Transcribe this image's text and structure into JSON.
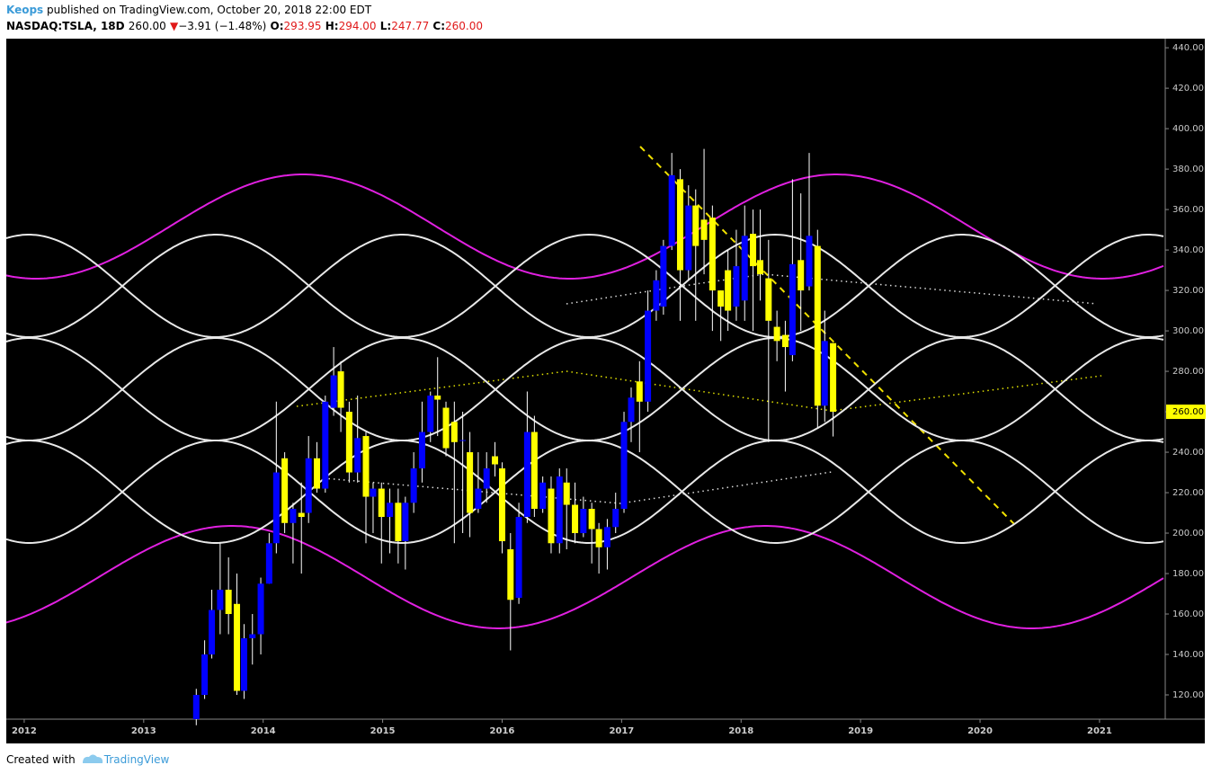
{
  "header": {
    "author": "Keops",
    "published": " published on TradingView.com, October 20, 2018 22:00 EDT",
    "symbol": "NASDAQ:TSLA, 18D",
    "last": "260.00",
    "arrow": "▼",
    "change": "−3.91 (−1.48%)",
    "ohlc": [
      {
        "label": "O:",
        "value": "293.95"
      },
      {
        "label": "H:",
        "value": "294.00"
      },
      {
        "label": "L:",
        "value": "247.77"
      },
      {
        "label": "C:",
        "value": "260.00"
      }
    ]
  },
  "footer": {
    "text": "Created with",
    "brand": "TradingView"
  },
  "chart_data": {
    "type": "candlestick",
    "x": [
      2013.44,
      2013.51,
      2013.57,
      2013.64,
      2013.71,
      2013.78,
      2013.84,
      2013.91,
      2013.98,
      2014.05,
      2014.11,
      2014.18,
      2014.25,
      2014.32,
      2014.38,
      2014.45,
      2014.52,
      2014.59,
      2014.65,
      2014.72,
      2014.79,
      2014.86,
      2014.92,
      2014.99,
      2015.06,
      2015.13,
      2015.19,
      2015.26,
      2015.33,
      2015.4,
      2015.46,
      2015.53,
      2015.6,
      2015.67,
      2015.73,
      2015.8,
      2015.87,
      2015.94,
      2016.0,
      2016.07,
      2016.14,
      2016.21,
      2016.27,
      2016.34,
      2016.41,
      2016.48,
      2016.54,
      2016.61,
      2016.68,
      2016.75,
      2016.81,
      2016.88,
      2016.95,
      2017.02,
      2017.08,
      2017.15,
      2017.22,
      2017.29,
      2017.35,
      2017.42,
      2017.49,
      2017.56,
      2017.62,
      2017.69,
      2017.76,
      2017.83,
      2017.89,
      2017.96,
      2018.03,
      2018.1,
      2018.16,
      2018.23,
      2018.3,
      2018.37,
      2018.43,
      2018.5,
      2018.57,
      2018.64,
      2018.7,
      2018.77
    ],
    "open": [
      108,
      120,
      140,
      162,
      172,
      165,
      122,
      148,
      150,
      175,
      195,
      237,
      205,
      210,
      210,
      237,
      222,
      262,
      280,
      260,
      230,
      248,
      218,
      222,
      208,
      215,
      196,
      215,
      232,
      250,
      268,
      262,
      255,
      246,
      240,
      212,
      222,
      238,
      232,
      192,
      168,
      208,
      250,
      212,
      222,
      195,
      225,
      214,
      200,
      212,
      202,
      193,
      203,
      212,
      255,
      275,
      265,
      310,
      312,
      342,
      375,
      330,
      362,
      355,
      356,
      320,
      330,
      312,
      315,
      348,
      335,
      326,
      302,
      298,
      288,
      335,
      322,
      342,
      263,
      293.95
    ],
    "high": [
      123,
      147,
      172,
      195,
      188,
      180,
      155,
      160,
      178,
      200,
      265,
      240,
      215,
      225,
      248,
      245,
      268,
      292,
      285,
      265,
      268,
      250,
      225,
      225,
      222,
      222,
      218,
      240,
      265,
      270,
      287,
      265,
      265,
      260,
      250,
      240,
      240,
      245,
      235,
      200,
      215,
      270,
      258,
      228,
      228,
      232,
      232,
      225,
      218,
      215,
      205,
      207,
      220,
      260,
      272,
      285,
      320,
      330,
      345,
      388,
      380,
      372,
      370,
      390,
      362,
      320,
      340,
      350,
      362,
      360,
      360,
      345,
      310,
      305,
      375,
      368,
      388,
      350,
      310,
      294.0
    ],
    "low": [
      105,
      118,
      138,
      150,
      150,
      120,
      118,
      135,
      140,
      175,
      190,
      200,
      185,
      180,
      205,
      220,
      220,
      258,
      250,
      225,
      225,
      195,
      200,
      185,
      190,
      185,
      182,
      210,
      225,
      245,
      248,
      238,
      195,
      200,
      198,
      210,
      215,
      228,
      190,
      142,
      165,
      205,
      208,
      210,
      190,
      190,
      192,
      195,
      198,
      185,
      180,
      182,
      200,
      210,
      245,
      240,
      260,
      305,
      308,
      340,
      305,
      325,
      305,
      328,
      300,
      295,
      300,
      305,
      305,
      300,
      315,
      245,
      285,
      270,
      285,
      300,
      320,
      252,
      255,
      247.77
    ],
    "close": [
      120,
      140,
      162,
      172,
      160,
      122,
      148,
      150,
      175,
      195,
      230,
      205,
      212,
      208,
      237,
      222,
      265,
      278,
      262,
      230,
      247,
      218,
      222,
      208,
      215,
      196,
      215,
      232,
      250,
      268,
      266,
      242,
      245,
      246,
      210,
      222,
      232,
      234,
      196,
      167,
      208,
      250,
      212,
      225,
      195,
      228,
      214,
      200,
      212,
      202,
      193,
      203,
      212,
      255,
      267,
      265,
      310,
      325,
      342,
      377,
      330,
      362,
      342,
      345,
      320,
      312,
      310,
      332,
      347,
      332,
      328,
      305,
      295,
      292,
      333,
      320,
      347,
      263,
      295,
      260.0
    ],
    "up_color": "#0000ff",
    "down_color": "#ffff00",
    "xlim": [
      2011.85,
      2021.55
    ],
    "xticks": [
      2012,
      2013,
      2014,
      2015,
      2016,
      2017,
      2018,
      2019,
      2020,
      2021
    ],
    "ylim": [
      108,
      444.5
    ],
    "yticks": [
      {
        "value": 120,
        "label": "120.00"
      },
      {
        "value": 140,
        "label": "140.00"
      },
      {
        "value": 160,
        "label": "160.00"
      },
      {
        "value": 180,
        "label": "180.00"
      },
      {
        "value": 200,
        "label": "200.00"
      },
      {
        "value": 220,
        "label": "220.00"
      },
      {
        "value": 240,
        "label": "240.00"
      },
      {
        "value": 260,
        "label": "260.00"
      },
      {
        "value": 280,
        "label": "280.00"
      },
      {
        "value": 300,
        "label": "300.00"
      },
      {
        "value": 320,
        "label": "320.00"
      },
      {
        "value": 340,
        "label": "340.00"
      },
      {
        "value": 360,
        "label": "360.00"
      },
      {
        "value": 380,
        "label": "380.00"
      },
      {
        "value": 400,
        "label": "400.00"
      },
      {
        "value": 420,
        "label": "420.00"
      },
      {
        "value": 440,
        "label": "440.00"
      }
    ],
    "last_price": {
      "value": 260,
      "label": "260.00"
    },
    "grid": false
  }
}
